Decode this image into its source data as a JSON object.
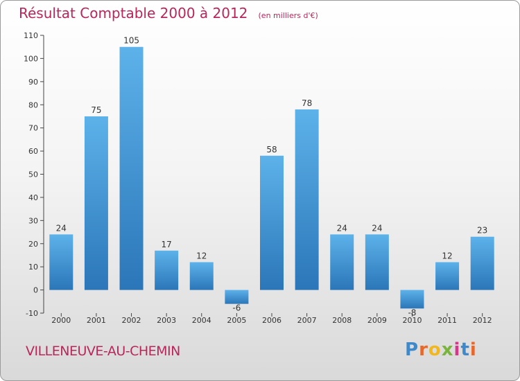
{
  "header": {
    "title": "Résultat Comptable 2000 à 2012",
    "subtitle": "(en milliers d'€)"
  },
  "footer": {
    "commune": "VILLENEUVE-AU-CHEMIN",
    "logo": "Proxiti"
  },
  "colors": {
    "title": "#b8265a",
    "bar_top": "#5db2ea",
    "bar_bottom": "#2b76b8",
    "axis": "#444444"
  },
  "chart_data": {
    "type": "bar",
    "title": "Résultat Comptable 2000 à 2012",
    "subtitle": "(en milliers d'€)",
    "xlabel": "",
    "ylabel": "",
    "categories": [
      "2000",
      "2001",
      "2002",
      "2003",
      "2004",
      "2005",
      "2006",
      "2007",
      "2008",
      "2009",
      "2010",
      "2011",
      "2012"
    ],
    "values": [
      24,
      75,
      105,
      17,
      12,
      -6,
      58,
      78,
      24,
      24,
      -8,
      12,
      23
    ],
    "ylim": [
      -10,
      110
    ],
    "yticks": [
      -10,
      0,
      10,
      20,
      30,
      40,
      50,
      60,
      70,
      80,
      90,
      100,
      110
    ],
    "grid": false,
    "legend": "none"
  }
}
